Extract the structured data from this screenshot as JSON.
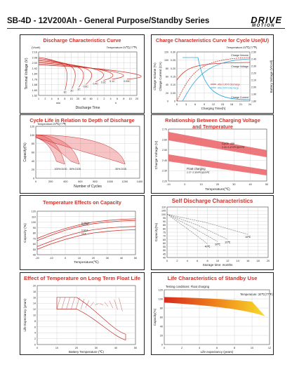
{
  "header": {
    "title": "SB-4D - 12V200Ah - General Purpose/Standby Series",
    "logo_text": "DRIVE",
    "logo_sub": "MOTION"
  },
  "panels": {
    "discharge": {
      "title": "Discharge Characteristics Curve"
    },
    "cycle_charge": {
      "title": "Charge Characteristics Curve for Cycle Use(IU)"
    },
    "dod": {
      "title": "Cycle Life in Relation to Depth of Discharge"
    },
    "volt_temp": {
      "title": "Relationship Between Charging Voltage and Temperature"
    },
    "capacity_temp": {
      "title": "Temperature Effects on Capacity"
    },
    "self_discharge": {
      "title": "Self Discharge Characteristics"
    },
    "float_life": {
      "title": "Effect of Temperature on Long Term Float Life"
    },
    "standby_life": {
      "title": "Life Characteristics of Standby Use",
      "note": "Testing conditions: Float charging",
      "temp": "Temperature: 20℃(77℉)"
    }
  },
  "chart_data": [
    {
      "type": "line",
      "title": "Discharge Characteristics Curve",
      "note": "Temperature:25℃(77℉)",
      "xlabel": "Discharge Time",
      "ylabel": "Terminal Voltage (V)",
      "y_unit": "(V/cell)",
      "xticks": [
        "1",
        "2",
        "4",
        "6",
        "8",
        "10",
        "20",
        "40",
        "60",
        "1",
        "2",
        "4",
        "6",
        "8",
        "10",
        "20"
      ],
      "xgroups": [
        "min",
        "h"
      ],
      "yticks": [
        "1.52",
        "1.60",
        "1.68",
        "1.76",
        "1.84",
        "1.92",
        "2.00",
        "2.08",
        "2.16"
      ],
      "ylim": [
        1.52,
        2.16
      ],
      "series": [
        {
          "name": "3C",
          "label_x": 0.27,
          "end_y": 1.6
        },
        {
          "name": "2C",
          "label_x": 0.34,
          "end_y": 1.62
        },
        {
          "name": "1C",
          "label_x": 0.41,
          "end_y": 1.64
        },
        {
          "name": "0.6C",
          "label_x": 0.48,
          "end_y": 1.68
        },
        {
          "name": "0.4C",
          "label_x": 0.58,
          "end_y": 1.72
        },
        {
          "name": "0.2C",
          "label_x": 0.66,
          "end_y": 1.74
        },
        {
          "name": "0.1C",
          "label_x": 0.75,
          "end_y": 1.76
        },
        {
          "name": "0.05C",
          "label_x": 0.9,
          "end_y": 1.76
        }
      ]
    },
    {
      "type": "line",
      "title": "Charge Characteristics Curve for Cycle Use(IU)",
      "note": "Temperature:25℃(77℉)",
      "xlabel": "Charging Time(h)",
      "ylabel_left": "Charge Volume (%)",
      "ylabel_mid": "Charge Current (CA)",
      "ylabel_right": "Battery Voltage (V/Cell)",
      "xticks": [
        "0",
        "3",
        "6",
        "9",
        "12",
        "15",
        "18",
        "21",
        "24"
      ],
      "ytick_volume": [
        "0",
        "20",
        "40",
        "60",
        "80",
        "100",
        "120"
      ],
      "ytick_current": [
        "0",
        "0.05",
        "0.10",
        "0.15",
        "0.20",
        "0.25",
        "0.30"
      ],
      "ytick_voltage": [
        "1.80",
        "1.90",
        "2.00",
        "2.10",
        "2.20",
        "2.30",
        "2.40",
        "2.50"
      ],
      "legend": [
        "After 100% Discharge",
        "After 50% Discharge"
      ],
      "annotations": [
        "Charge Volume",
        "Charge Voltage",
        "Charge Current"
      ]
    },
    {
      "type": "area",
      "title": "Cycle Life in Relation to Depth of Discharge",
      "note": "Temperature:25℃(77℉)",
      "xlabel": "Number of Cycles",
      "ylabel": "Capacity(%)",
      "xticks": [
        "0",
        "200",
        "400",
        "600",
        "800",
        "1000",
        "1200",
        "1400"
      ],
      "yticks": [
        "0",
        "20",
        "40",
        "60",
        "80",
        "100",
        "120"
      ],
      "bands": [
        "100% DOD",
        "50% DOD",
        "30% DOD"
      ]
    },
    {
      "type": "area",
      "title": "Relationship Between Charging Voltage and Temperature",
      "xlabel": "Temperature(℃)",
      "ylabel": "Charge Voltage (V)",
      "xticks": [
        "-10",
        "0",
        "10",
        "20",
        "30",
        "40",
        "50"
      ],
      "yticks": [
        "2.20",
        "2.30",
        "2.40",
        "2.50",
        "2.60",
        "2.70"
      ],
      "bands": [
        {
          "name": "Cycle use",
          "label": "2.43~2.47VPC@20℃"
        },
        {
          "name": "Float charging",
          "label": "2.27~2.30VPC@20℃"
        }
      ]
    },
    {
      "type": "line",
      "title": "Temperature Effects on Capacity",
      "xlabel": "Temperature(℃)",
      "ylabel": "Capacity (%)",
      "xticks": [
        "-20",
        "-10",
        "0",
        "10",
        "20",
        "30",
        "40",
        "50"
      ],
      "yticks": [
        "40",
        "50",
        "60",
        "70",
        "80",
        "90",
        "100",
        "110",
        "120"
      ],
      "ylim": [
        40,
        120
      ],
      "series": [
        {
          "name": "0.05CA",
          "values": [
            70,
            80,
            88,
            95,
            100,
            103,
            105,
            106
          ]
        },
        {
          "name": "0.1CA",
          "values": [
            66,
            76,
            85,
            92,
            97,
            100,
            102,
            103
          ]
        },
        {
          "name": "0.6CA",
          "values": [
            55,
            65,
            74,
            81,
            86,
            89,
            91,
            92
          ]
        },
        {
          "name": "1CA",
          "values": [
            50,
            60,
            68,
            75,
            80,
            83,
            85,
            86
          ]
        }
      ]
    },
    {
      "type": "line",
      "title": "Self Discharge Characteristics",
      "xlabel": "Storage time: months",
      "ylabel": "Capacity(%)",
      "x": [
        0,
        2,
        4,
        6,
        8,
        10,
        12,
        14,
        16,
        18,
        20
      ],
      "yticks": [
        "40",
        "45",
        "50",
        "55",
        "60",
        "65",
        "70",
        "75",
        "80",
        "85",
        "90",
        "95",
        "100",
        "105",
        "110"
      ],
      "ylim": [
        40,
        110
      ],
      "series": [
        {
          "name": "40℃",
          "points": [
            [
              0,
              100
            ],
            [
              4,
              80
            ],
            [
              8,
              59
            ]
          ]
        },
        {
          "name": "30℃",
          "points": [
            [
              0,
              100
            ],
            [
              5,
              82
            ],
            [
              10,
              62
            ]
          ]
        },
        {
          "name": "20℃",
          "points": [
            [
              0,
              100
            ],
            [
              6,
              85
            ],
            [
              12,
              65
            ]
          ]
        },
        {
          "name": "10℃",
          "points": [
            [
              0,
              100
            ],
            [
              8,
              88
            ],
            [
              16,
              72
            ]
          ]
        }
      ]
    },
    {
      "type": "area",
      "title": "Effect of Temperature on Long Term Float Life",
      "xlabel": "Battery Temperature (℃)",
      "ylabel": "Life Expectancy (years)",
      "xticks": [
        "0",
        "10",
        "20",
        "30",
        "40",
        "50"
      ],
      "yticks": [
        "0",
        "2",
        "4",
        "6",
        "8",
        "10",
        "12",
        "14",
        "16",
        "18",
        "20"
      ],
      "ylim": [
        0,
        20
      ]
    },
    {
      "type": "area",
      "title": "Life Characteristics of Standby Use",
      "xlabel": "Life expectancy (years)",
      "ylabel": "Capacity(%)",
      "xticks": [
        "0",
        "2",
        "4",
        "6",
        "8",
        "10",
        "12"
      ],
      "yticks": [
        "0",
        "20",
        "40",
        "60",
        "80",
        "100",
        "120"
      ],
      "ylim": [
        0,
        120
      ]
    }
  ]
}
